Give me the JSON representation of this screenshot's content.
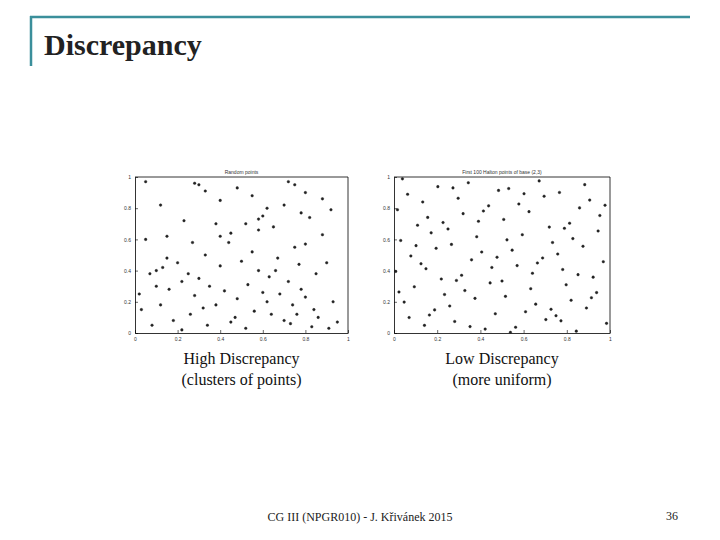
{
  "slide": {
    "title": "Discrepancy",
    "footer": "CG III (NPGR010) - J. Křivánek 2015",
    "page": 36
  },
  "chart_data": [
    {
      "type": "scatter",
      "title": "Random points",
      "annotations": [
        "High Discrepancy",
        "(clusters of points)"
      ],
      "x": [
        0.05,
        0.28,
        0.3,
        0.33,
        0.48,
        0.55,
        0.72,
        0.8,
        0.88,
        0.12,
        0.4,
        0.62,
        0.75,
        0.92,
        0.23,
        0.38,
        0.58,
        0.6,
        0.7,
        0.78,
        0.82,
        0.05,
        0.15,
        0.27,
        0.45,
        0.52,
        0.65,
        0.75,
        0.88,
        0.1,
        0.2,
        0.33,
        0.44,
        0.55,
        0.67,
        0.8,
        0.9,
        0.07,
        0.13,
        0.25,
        0.3,
        0.4,
        0.5,
        0.58,
        0.63,
        0.72,
        0.77,
        0.85,
        0.03,
        0.1,
        0.16,
        0.22,
        0.28,
        0.35,
        0.42,
        0.48,
        0.53,
        0.6,
        0.68,
        0.74,
        0.8,
        0.93,
        0.08,
        0.18,
        0.26,
        0.32,
        0.38,
        0.47,
        0.56,
        0.62,
        0.7,
        0.76,
        0.83,
        0.91,
        0.02,
        0.12,
        0.22,
        0.34,
        0.45,
        0.52,
        0.64,
        0.73,
        0.86,
        0.95,
        0.15,
        0.4,
        0.58,
        0.78,
        0.84,
        0.66
      ],
      "values": [
        0.97,
        0.96,
        0.95,
        0.91,
        0.93,
        0.88,
        0.97,
        0.9,
        0.86,
        0.82,
        0.85,
        0.8,
        0.95,
        0.79,
        0.72,
        0.7,
        0.73,
        0.75,
        0.82,
        0.77,
        0.74,
        0.6,
        0.62,
        0.58,
        0.64,
        0.7,
        0.68,
        0.55,
        0.63,
        0.4,
        0.45,
        0.5,
        0.58,
        0.52,
        0.48,
        0.57,
        0.45,
        0.38,
        0.42,
        0.38,
        0.35,
        0.43,
        0.46,
        0.4,
        0.36,
        0.33,
        0.44,
        0.38,
        0.15,
        0.3,
        0.28,
        0.33,
        0.24,
        0.3,
        0.27,
        0.22,
        0.31,
        0.26,
        0.25,
        0.18,
        0.23,
        0.2,
        0.05,
        0.08,
        0.12,
        0.16,
        0.18,
        0.1,
        0.14,
        0.2,
        0.08,
        0.12,
        0.04,
        0.03,
        0.25,
        0.18,
        0.02,
        0.05,
        0.07,
        0.03,
        0.12,
        0.06,
        0.1,
        0.07,
        0.48,
        0.62,
        0.66,
        0.28,
        0.15,
        0.4
      ],
      "xlim": [
        0,
        1
      ],
      "ylim": [
        0,
        1
      ],
      "xticks": [
        0,
        0.2,
        0.4,
        0.6,
        0.8,
        1
      ],
      "yticks": [
        0,
        0.2,
        0.4,
        0.6,
        0.8,
        1
      ],
      "marker": "dot",
      "color": "#222222"
    },
    {
      "type": "scatter",
      "title": "First 100 Halton points of base (2,3)",
      "annotations": [
        "Low Discrepancy",
        "(more uniform)"
      ],
      "x": [
        0.5,
        0.25,
        0.75,
        0.125,
        0.625,
        0.375,
        0.875,
        0.063,
        0.563,
        0.313,
        0.813,
        0.188,
        0.688,
        0.438,
        0.938,
        0.031,
        0.531,
        0.281,
        0.781,
        0.156,
        0.656,
        0.406,
        0.906,
        0.094,
        0.594,
        0.344,
        0.844,
        0.219,
        0.719,
        0.469,
        0.969,
        0.016,
        0.516,
        0.266,
        0.766,
        0.141,
        0.641,
        0.391,
        0.891,
        0.078,
        0.578,
        0.328,
        0.828,
        0.203,
        0.703,
        0.453,
        0.953,
        0.047,
        0.547,
        0.297,
        0.797,
        0.172,
        0.672,
        0.422,
        0.922,
        0.109,
        0.609,
        0.359,
        0.859,
        0.234,
        0.734,
        0.484,
        0.984,
        0.008,
        0.508,
        0.258,
        0.758,
        0.133,
        0.633,
        0.383,
        0.883,
        0.07,
        0.57,
        0.32,
        0.82,
        0.195,
        0.695,
        0.445,
        0.945,
        0.039,
        0.539,
        0.289,
        0.789,
        0.164,
        0.664,
        0.414,
        0.914,
        0.102,
        0.602,
        0.352,
        0.852,
        0.227,
        0.727,
        0.477,
        0.977,
        0.023,
        0.523,
        0.273,
        0.773,
        0.148
      ],
      "values": [
        0.333,
        0.667,
        0.111,
        0.444,
        0.778,
        0.222,
        0.556,
        0.889,
        0.037,
        0.37,
        0.704,
        0.148,
        0.481,
        0.815,
        0.259,
        0.593,
        0.926,
        0.074,
        0.407,
        0.741,
        0.185,
        0.519,
        0.852,
        0.296,
        0.63,
        0.963,
        0.012,
        0.346,
        0.679,
        0.123,
        0.457,
        0.79,
        0.235,
        0.568,
        0.901,
        0.049,
        0.383,
        0.716,
        0.16,
        0.494,
        0.827,
        0.272,
        0.605,
        0.938,
        0.086,
        0.42,
        0.753,
        0.198,
        0.531,
        0.864,
        0.309,
        0.642,
        0.975,
        0.025,
        0.358,
        0.691,
        0.136,
        0.469,
        0.802,
        0.247,
        0.58,
        0.914,
        0.062,
        0.395,
        0.728,
        0.173,
        0.506,
        0.84,
        0.284,
        0.617,
        0.951,
        0.099,
        0.432,
        0.765,
        0.21,
        0.543,
        0.877,
        0.321,
        0.654,
        0.988,
        0.004,
        0.337,
        0.671,
        0.115,
        0.449,
        0.782,
        0.226,
        0.56,
        0.893,
        0.041,
        0.374,
        0.708,
        0.152,
        0.486,
        0.819,
        0.263,
        0.597,
        0.93,
        0.078,
        0.412
      ],
      "xlim": [
        0,
        1
      ],
      "ylim": [
        0,
        1
      ],
      "xticks": [
        0,
        0.2,
        0.4,
        0.6,
        0.8,
        1
      ],
      "yticks": [
        0,
        0.2,
        0.4,
        0.6,
        0.8,
        1
      ],
      "marker": "dot",
      "color": "#222222"
    }
  ]
}
